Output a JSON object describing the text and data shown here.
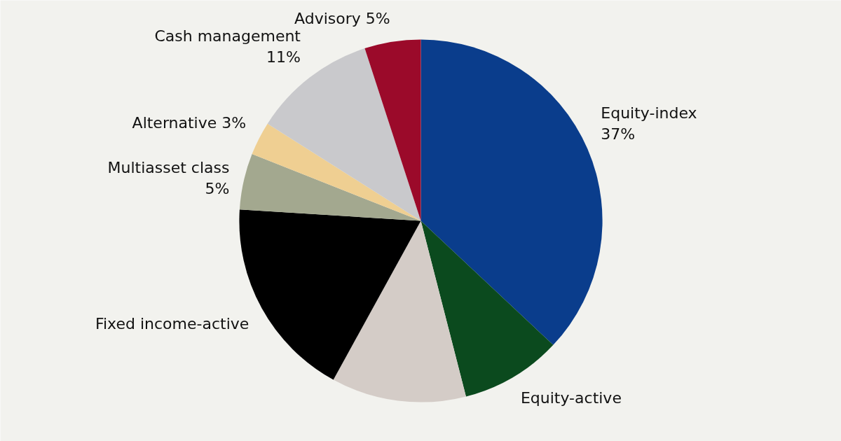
{
  "chart_data": {
    "type": "pie",
    "categories": [
      "Equity-index",
      "Equity-active",
      null,
      "Fixed income-active",
      "Multiasset class",
      "Alternative",
      "Cash management",
      "Advisory"
    ],
    "values": [
      37,
      9,
      12,
      18,
      5,
      3,
      11,
      5
    ],
    "value_labels": [
      "37%",
      null,
      null,
      null,
      "5%",
      "3%",
      "11%",
      "5%"
    ],
    "colors": [
      "#0a3d8c",
      "#0b4a1e",
      "#d4ccc7",
      "#000000",
      "#a3a88f",
      "#efcf92",
      "#c9c9cc",
      "#9b0a2a"
    ]
  }
}
